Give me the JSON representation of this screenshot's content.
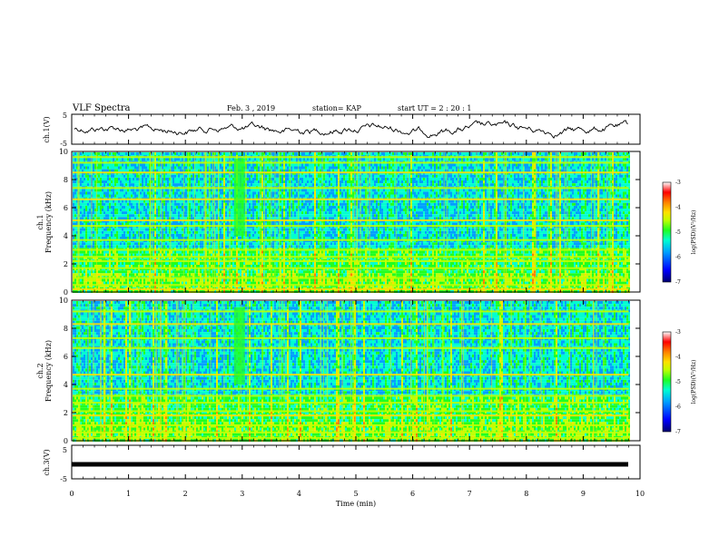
{
  "header": {
    "title": "VLF Spectra",
    "date": "Feb. 3  , 2019",
    "station": "station= KAP",
    "start": "start  UT =   2  : 20 : 1"
  },
  "chart_data": [
    {
      "type": "line",
      "panel": "ch1-waveform",
      "ylabel": "ch.1(V)",
      "ylim": [
        -5,
        5
      ],
      "yticks": [
        "5",
        "-5"
      ],
      "xlim": [
        0,
        10
      ],
      "note_level": 0
    },
    {
      "type": "heatmap",
      "panel": "ch1-spectrogram",
      "ylabel": "ch.1\nFrequency (kHz)",
      "ylim": [
        0,
        10
      ],
      "yticks": [
        "0",
        "2",
        "4",
        "6",
        "8",
        "10"
      ],
      "xlim": [
        0,
        10
      ],
      "data_extent_min": 9.8,
      "colorbar": {
        "label": "log(PSD)(V²/Hz)",
        "range": [
          -7,
          -3
        ],
        "ticks": [
          "-3",
          "-4",
          "-5",
          "-6",
          "-7"
        ],
        "colormap": [
          "#000080",
          "#0000ff",
          "#00a0ff",
          "#00ffd0",
          "#20ff20",
          "#c0ff00",
          "#ffe000",
          "#ff8000",
          "#ff0000",
          "#ffffff"
        ]
      },
      "bright_bands_khz": [
        0.2,
        0.5,
        1.0,
        1.7,
        2.2,
        2.5,
        3.0,
        3.7,
        4.7,
        5.1,
        6.6,
        7.4,
        8.5,
        9.2,
        9.6
      ],
      "burst_time_min": 2.95
    },
    {
      "type": "heatmap",
      "panel": "ch2-spectrogram",
      "ylabel": "ch.2\nFrequency (kHz)",
      "ylim": [
        0,
        10
      ],
      "yticks": [
        "0",
        "2",
        "4",
        "6",
        "8",
        "10"
      ],
      "xlim": [
        0,
        10
      ],
      "data_extent_min": 9.8,
      "colorbar": {
        "label": "log(PSD)(V²/Hz)",
        "range": [
          -7,
          -3
        ],
        "ticks": [
          "-3",
          "-4",
          "-5",
          "-6",
          "-7"
        ]
      },
      "bright_bands_khz": [
        0.2,
        0.6,
        1.1,
        1.8,
        2.1,
        2.7,
        3.2,
        3.7,
        4.7,
        6.6,
        7.3,
        8.3,
        9.2
      ],
      "burst_time_min": 2.95
    },
    {
      "type": "line",
      "panel": "ch3-waveform",
      "ylabel": "ch.3(V)",
      "ylim": [
        -5,
        5
      ],
      "yticks": [
        "5",
        "-5"
      ],
      "xlim": [
        0,
        10
      ],
      "level": 0
    }
  ],
  "xaxis": {
    "label": "Time  (min)",
    "ticks": [
      "0",
      "1",
      "2",
      "3",
      "4",
      "5",
      "6",
      "7",
      "8",
      "9",
      "10"
    ]
  }
}
